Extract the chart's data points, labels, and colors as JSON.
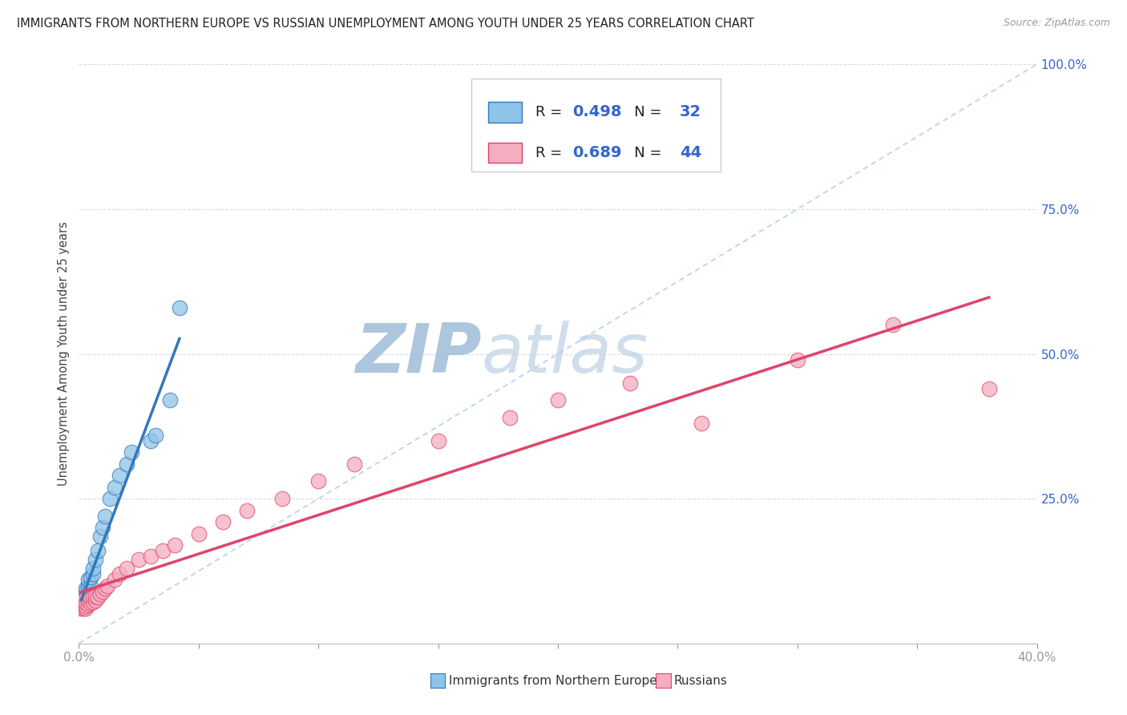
{
  "title": "IMMIGRANTS FROM NORTHERN EUROPE VS RUSSIAN UNEMPLOYMENT AMONG YOUTH UNDER 25 YEARS CORRELATION CHART",
  "source": "Source: ZipAtlas.com",
  "ylabel": "Unemployment Among Youth under 25 years",
  "xlim": [
    0.0,
    0.4
  ],
  "ylim": [
    0.0,
    1.0
  ],
  "xticks": [
    0.0,
    0.05,
    0.1,
    0.15,
    0.2,
    0.25,
    0.3,
    0.35,
    0.4
  ],
  "yticks": [
    0.0,
    0.25,
    0.5,
    0.75,
    1.0
  ],
  "blue_R": 0.498,
  "blue_N": 32,
  "pink_R": 0.689,
  "pink_N": 44,
  "blue_color": "#8ec4e8",
  "pink_color": "#f4aec0",
  "blue_line_color": "#3377bb",
  "pink_line_color": "#e0446a",
  "ref_line_color": "#aaccee",
  "watermark_color": "#d0dff0",
  "blue_scatter_x": [
    0.001,
    0.001,
    0.001,
    0.002,
    0.002,
    0.002,
    0.002,
    0.003,
    0.003,
    0.003,
    0.003,
    0.004,
    0.004,
    0.004,
    0.005,
    0.005,
    0.006,
    0.006,
    0.007,
    0.008,
    0.009,
    0.01,
    0.011,
    0.013,
    0.015,
    0.017,
    0.02,
    0.022,
    0.03,
    0.032,
    0.038,
    0.042
  ],
  "blue_scatter_y": [
    0.07,
    0.075,
    0.08,
    0.068,
    0.072,
    0.078,
    0.085,
    0.07,
    0.08,
    0.09,
    0.095,
    0.085,
    0.1,
    0.11,
    0.1,
    0.115,
    0.12,
    0.13,
    0.145,
    0.16,
    0.185,
    0.2,
    0.22,
    0.25,
    0.27,
    0.29,
    0.31,
    0.33,
    0.35,
    0.36,
    0.42,
    0.58
  ],
  "pink_scatter_x": [
    0.001,
    0.001,
    0.001,
    0.002,
    0.002,
    0.002,
    0.002,
    0.003,
    0.003,
    0.003,
    0.004,
    0.004,
    0.005,
    0.005,
    0.006,
    0.006,
    0.007,
    0.007,
    0.008,
    0.009,
    0.01,
    0.011,
    0.012,
    0.015,
    0.017,
    0.02,
    0.025,
    0.03,
    0.035,
    0.04,
    0.05,
    0.06,
    0.07,
    0.085,
    0.1,
    0.115,
    0.15,
    0.18,
    0.2,
    0.23,
    0.26,
    0.3,
    0.34,
    0.38
  ],
  "pink_scatter_y": [
    0.06,
    0.065,
    0.07,
    0.06,
    0.065,
    0.07,
    0.075,
    0.06,
    0.065,
    0.07,
    0.068,
    0.075,
    0.07,
    0.078,
    0.072,
    0.08,
    0.075,
    0.082,
    0.08,
    0.085,
    0.09,
    0.095,
    0.1,
    0.11,
    0.12,
    0.13,
    0.145,
    0.15,
    0.16,
    0.17,
    0.19,
    0.21,
    0.23,
    0.25,
    0.28,
    0.31,
    0.35,
    0.39,
    0.42,
    0.45,
    0.38,
    0.49,
    0.55,
    0.44
  ],
  "figsize": [
    14.06,
    8.92
  ],
  "dpi": 100,
  "legend_label_blue": "Immigrants from Northern Europe",
  "legend_label_pink": "Russians"
}
